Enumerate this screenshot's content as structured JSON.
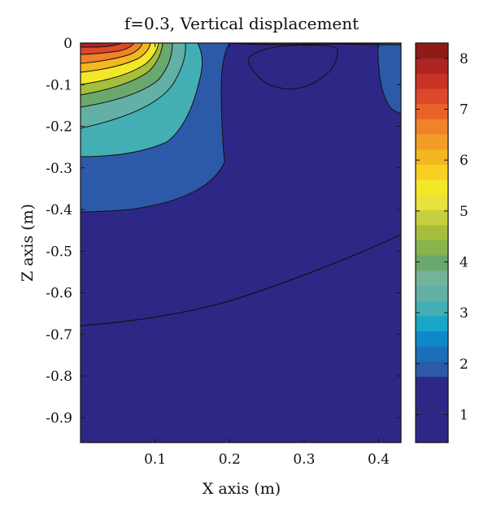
{
  "chart_data": {
    "type": "contour",
    "title": "f=0.3, Vertical displacement",
    "xlabel": "X axis (m)",
    "ylabel": "Z axis (m)",
    "xlim": [
      0,
      0.43
    ],
    "ylim": [
      -0.96,
      0
    ],
    "x_ticks": [
      0.1,
      0.2,
      0.3,
      0.4
    ],
    "x_tick_labels": [
      "0.1",
      "0.2",
      "0.3",
      "0.4"
    ],
    "y_ticks": [
      0,
      -0.1,
      -0.2,
      -0.3,
      -0.4,
      -0.5,
      -0.6,
      -0.7,
      -0.8,
      -0.9
    ],
    "y_tick_labels": [
      "0",
      "-0.1",
      "-0.2",
      "-0.3",
      "-0.4",
      "-0.5",
      "-0.6",
      "-0.7",
      "-0.8",
      "-0.9"
    ],
    "colorbar": {
      "range": [
        0.45,
        8.3
      ],
      "ticks": [
        1,
        2,
        3,
        4,
        5,
        6,
        7,
        8
      ],
      "tick_labels": [
        "1",
        "2",
        "3",
        "4",
        "5",
        "6",
        "7",
        "8"
      ],
      "colors": [
        "#2d2886",
        "#2d5aa8",
        "#1a6fb8",
        "#0e88c8",
        "#19a6c8",
        "#43afb4",
        "#63b0a6",
        "#72b39a",
        "#6aa86e",
        "#87b44c",
        "#a5bf3c",
        "#c6cf3e",
        "#e8e23a",
        "#f3e827",
        "#f7d021",
        "#f3b820",
        "#f29d26",
        "#f08228",
        "#e8632a",
        "#dd472a",
        "#c93325",
        "#ad2421",
        "#8f1b19"
      ]
    },
    "contour_levels": [
      1.5,
      2.5,
      3.0,
      3.5,
      4.0,
      4.5,
      5.0,
      5.5,
      6.0,
      6.5,
      7.0
    ],
    "grid": false
  }
}
